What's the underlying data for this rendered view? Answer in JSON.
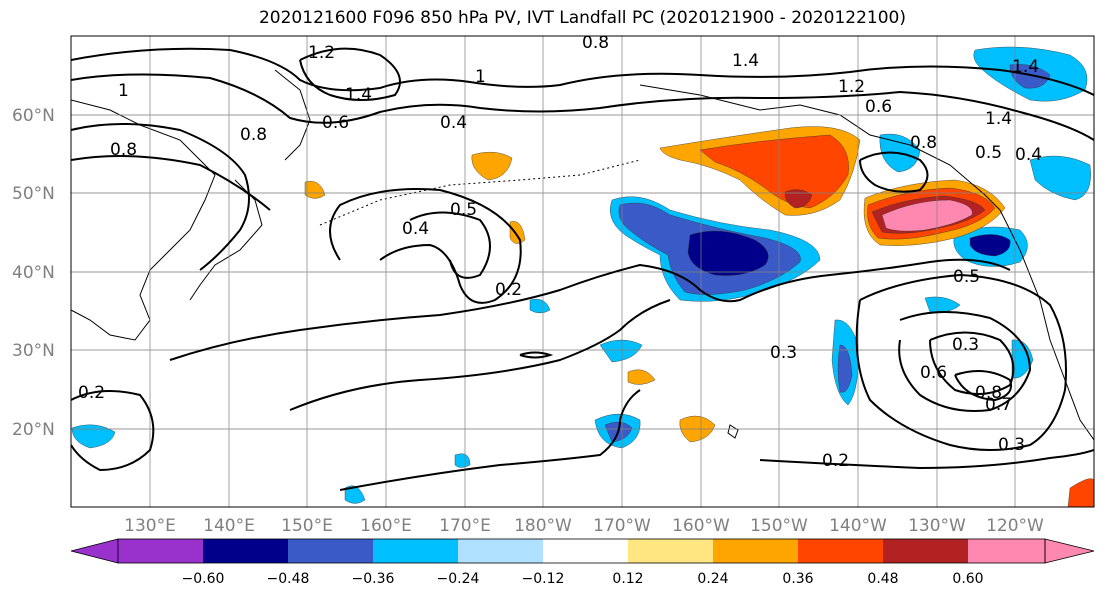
{
  "title": "2020121600 F096 850 hPa PV, IVT Landfall PC (2020121900 - 2020122100)",
  "lat_labels": [
    "60°N",
    "50°N",
    "40°N",
    "30°N",
    "20°N"
  ],
  "lon_labels": [
    "130°E",
    "140°E",
    "150°E",
    "160°E",
    "170°E",
    "180°W",
    "170°W",
    "160°W",
    "150°W",
    "140°W",
    "130°W",
    "120°W"
  ],
  "colorbar": {
    "colors": [
      "#9932cc",
      "#00008b",
      "#3a5bc7",
      "#00bfff",
      "#b0e0ff",
      "#ffffff",
      "#ffe680",
      "#ffa500",
      "#ff4500",
      "#b22222",
      "#ff88b0"
    ],
    "tick_labels": [
      "−0.60",
      "−0.48",
      "−0.36",
      "−0.24",
      "−0.12",
      "0.12",
      "0.24",
      "0.36",
      "0.48",
      "0.60"
    ]
  },
  "contour_labels": [
    "1.2",
    "1.4",
    "1.4",
    "1.2",
    "1",
    "0.8",
    "0.4",
    "0.5",
    "0.4",
    "0.2",
    "0.6",
    "0.5",
    "0.4",
    "0.3",
    "0.5",
    "0.3",
    "0.6",
    "0.8",
    "0.7",
    "0.3",
    "0.2",
    "0.2",
    "0.8",
    "1.4",
    "0.8",
    "1",
    "0.8",
    "0.6",
    "1.4"
  ]
}
